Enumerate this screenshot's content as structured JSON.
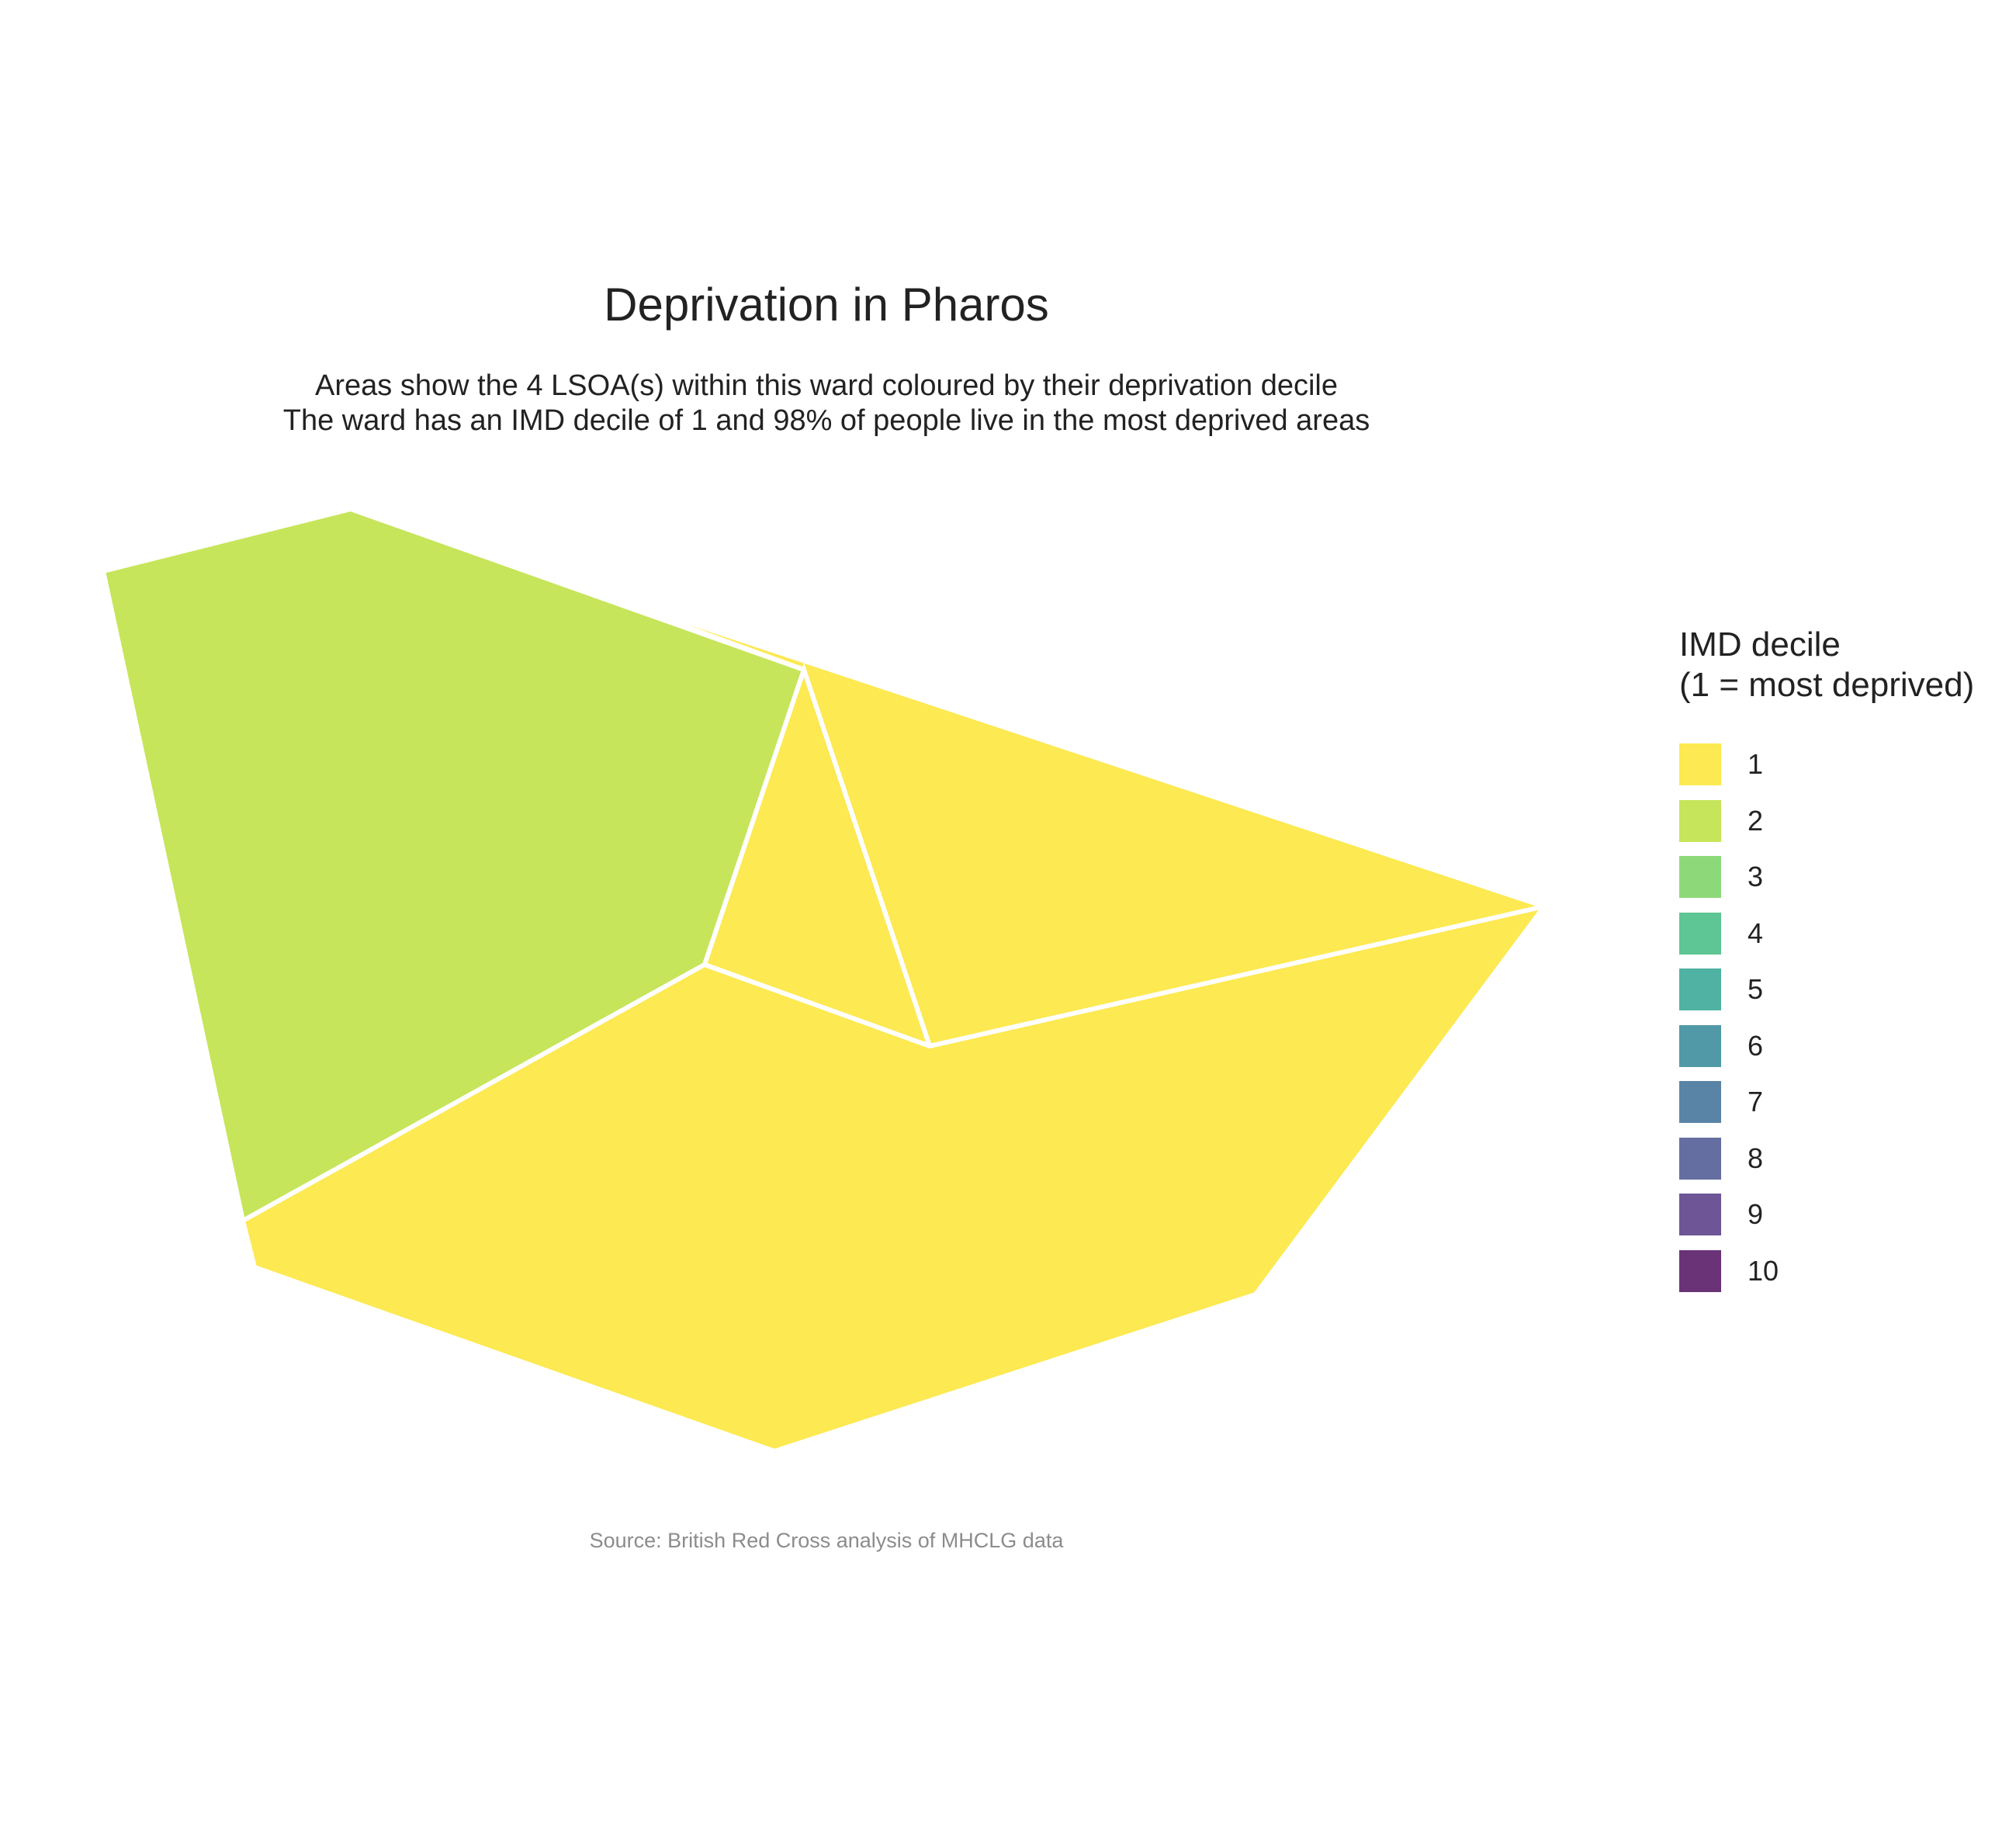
{
  "title": "Deprivation in Pharos",
  "subtitle": [
    "Areas show the 4 LSOA(s) within this ward coloured by their deprivation decile",
    "The ward has an IMD decile of 1 and 98% of people live in the most deprived areas"
  ],
  "caption": "Source: British Red Cross analysis of MHCLG data",
  "legend": {
    "title_lines": [
      "IMD decile",
      "(1 = most deprived)"
    ],
    "items": [
      {
        "label": "1",
        "color": "#FDE951"
      },
      {
        "label": "2",
        "color": "#C6E55A"
      },
      {
        "label": "3",
        "color": "#8DD97A"
      },
      {
        "label": "4",
        "color": "#5EC694"
      },
      {
        "label": "5",
        "color": "#4FB2A2"
      },
      {
        "label": "6",
        "color": "#5199A6"
      },
      {
        "label": "7",
        "color": "#5A84A5"
      },
      {
        "label": "8",
        "color": "#646EA1"
      },
      {
        "label": "9",
        "color": "#6D5596"
      },
      {
        "label": "10",
        "color": "#6A3378"
      }
    ]
  },
  "areas": [
    {
      "name": "lsoa-west",
      "decile": 2
    },
    {
      "name": "lsoa-north-east",
      "decile": 1
    },
    {
      "name": "lsoa-centre",
      "decile": 1
    },
    {
      "name": "lsoa-south",
      "decile": 1
    }
  ]
}
